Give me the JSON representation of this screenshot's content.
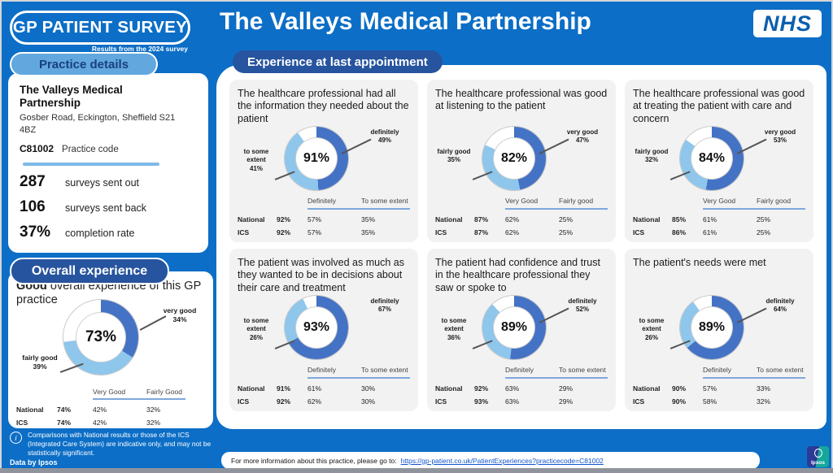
{
  "theme": {
    "page_bg": "#0c6ec6",
    "navy": "#27549e",
    "pill_light_bg": "#62a8df",
    "pill_light_text": "#18407e",
    "donut_dark": "#4472c4",
    "donut_light": "#8ec6ec",
    "divider_blue": "#7db9e8",
    "table_rule": "#7fa8dc",
    "link": "#1155cc",
    "card_bg": "#f2f2f2"
  },
  "header": {
    "logo_title": "GP PATIENT SURVEY",
    "logo_subtitle": "Results from the 2024 survey",
    "practice_title": "The Valleys Medical Partnership",
    "nhs_logo_text": "NHS"
  },
  "sidebar": {
    "practice_details_heading": "Practice details",
    "practice_name": "The Valleys Medical Partnership",
    "address": "Gosber Road, Eckington, Sheffield S21 4BZ",
    "practice_code": "C81002",
    "practice_code_label": "Practice code",
    "stats": [
      {
        "value": "287",
        "label": "surveys sent out"
      },
      {
        "value": "106",
        "label": "surveys sent back"
      },
      {
        "value": "37%",
        "label": "completion rate"
      }
    ],
    "overall_heading": "Overall experience"
  },
  "main": {
    "section_heading": "Experience at last appointment"
  },
  "footnote": {
    "icon": "i",
    "text": "Comparisons with National results or those of the ICS (Integrated Care System) are indicative only, and may not be statistically significant.",
    "credit": "Data by Ipsos"
  },
  "footer": {
    "text": "For more information about this practice, please go to:",
    "link": "https://gp-patient.co.uk/PatientExperiences?practicecode=C81002",
    "ipsos_logo_text": "Ipsos"
  },
  "chart_data": [
    {
      "type": "donut",
      "title": "Good overall experience of this GP practice",
      "title_bold": "Good",
      "title_rest": " overall experience of this GP practice",
      "center_label": "73%",
      "segments": [
        {
          "label": "very good",
          "value": 34,
          "value_label": "34%"
        },
        {
          "label": "fairly good",
          "value": 39,
          "value_label": "39%"
        }
      ],
      "table": {
        "columns": [
          "Very Good",
          "Fairly Good"
        ],
        "rows": [
          {
            "label": "National",
            "overall": "74%",
            "values": [
              "42%",
              "32%"
            ]
          },
          {
            "label": "ICS",
            "overall": "74%",
            "values": [
              "42%",
              "32%"
            ]
          }
        ]
      }
    },
    {
      "type": "donut",
      "title": "The healthcare professional had all the information they needed about the patient",
      "center_label": "91%",
      "segments": [
        {
          "label": "definitely",
          "value": 49,
          "value_label": "49%"
        },
        {
          "label": "to some extent",
          "value": 41,
          "value_label": "41%"
        }
      ],
      "table": {
        "columns": [
          "Definitely",
          "To some extent"
        ],
        "rows": [
          {
            "label": "National",
            "overall": "92%",
            "values": [
              "57%",
              "35%"
            ]
          },
          {
            "label": "ICS",
            "overall": "92%",
            "values": [
              "57%",
              "35%"
            ]
          }
        ]
      }
    },
    {
      "type": "donut",
      "title": "The healthcare professional was good at listening to the patient",
      "center_label": "82%",
      "segments": [
        {
          "label": "very good",
          "value": 47,
          "value_label": "47%"
        },
        {
          "label": "fairly good",
          "value": 35,
          "value_label": "35%"
        }
      ],
      "table": {
        "columns": [
          "Very Good",
          "Fairly good"
        ],
        "rows": [
          {
            "label": "National",
            "overall": "87%",
            "values": [
              "62%",
              "25%"
            ]
          },
          {
            "label": "ICS",
            "overall": "87%",
            "values": [
              "62%",
              "25%"
            ]
          }
        ]
      }
    },
    {
      "type": "donut",
      "title": "The healthcare professional was good at treating the patient with care and concern",
      "center_label": "84%",
      "segments": [
        {
          "label": "very good",
          "value": 53,
          "value_label": "53%"
        },
        {
          "label": "fairly good",
          "value": 32,
          "value_label": "32%"
        }
      ],
      "table": {
        "columns": [
          "Very Good",
          "Fairly good"
        ],
        "rows": [
          {
            "label": "National",
            "overall": "85%",
            "values": [
              "61%",
              "25%"
            ]
          },
          {
            "label": "ICS",
            "overall": "86%",
            "values": [
              "61%",
              "25%"
            ]
          }
        ]
      }
    },
    {
      "type": "donut",
      "title": "The patient was involved as much as they wanted to be in decisions about their care and treatment",
      "center_label": "93%",
      "right_leader_line": false,
      "segments": [
        {
          "label": "definitely",
          "value": 67,
          "value_label": "67%"
        },
        {
          "label": "to some extent",
          "value": 26,
          "value_label": "26%"
        }
      ],
      "table": {
        "columns": [
          "Definitely",
          "To some extent"
        ],
        "rows": [
          {
            "label": "National",
            "overall": "91%",
            "values": [
              "61%",
              "30%"
            ]
          },
          {
            "label": "ICS",
            "overall": "92%",
            "values": [
              "62%",
              "30%"
            ]
          }
        ]
      }
    },
    {
      "type": "donut",
      "title": "The patient had confidence and trust in the healthcare professional they saw or spoke to",
      "center_label": "89%",
      "segments": [
        {
          "label": "definitely",
          "value": 52,
          "value_label": "52%"
        },
        {
          "label": "to some extent",
          "value": 36,
          "value_label": "36%"
        }
      ],
      "table": {
        "columns": [
          "Definitely",
          "To some extent"
        ],
        "rows": [
          {
            "label": "National",
            "overall": "92%",
            "values": [
              "63%",
              "29%"
            ]
          },
          {
            "label": "ICS",
            "overall": "93%",
            "values": [
              "63%",
              "29%"
            ]
          }
        ]
      }
    },
    {
      "type": "donut",
      "title": "The patient's needs were met",
      "center_label": "89%",
      "segments": [
        {
          "label": "definitely",
          "value": 64,
          "value_label": "64%"
        },
        {
          "label": "to some extent",
          "value": 26,
          "value_label": "26%"
        }
      ],
      "table": {
        "columns": [
          "Definitely",
          "To some extent"
        ],
        "rows": [
          {
            "label": "National",
            "overall": "90%",
            "values": [
              "57%",
              "33%"
            ]
          },
          {
            "label": "ICS",
            "overall": "90%",
            "values": [
              "58%",
              "32%"
            ]
          }
        ]
      }
    }
  ]
}
